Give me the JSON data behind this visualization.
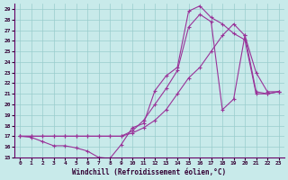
{
  "bg_color": "#c8eaea",
  "grid_color": "#99cccc",
  "line_color": "#993399",
  "xlabel": "Windchill (Refroidissement éolien,°C)",
  "xlim": [
    -0.5,
    23.5
  ],
  "ylim": [
    15,
    29.5
  ],
  "yticks": [
    15,
    16,
    17,
    18,
    19,
    20,
    21,
    22,
    23,
    24,
    25,
    26,
    27,
    28,
    29
  ],
  "xticks": [
    0,
    1,
    2,
    3,
    4,
    5,
    6,
    7,
    8,
    9,
    10,
    11,
    12,
    13,
    14,
    15,
    16,
    17,
    18,
    19,
    20,
    21,
    22,
    23
  ],
  "line1_x": [
    0,
    1,
    2,
    3,
    4,
    5,
    6,
    7,
    8,
    9,
    10,
    11,
    12,
    13,
    14,
    15,
    16,
    17,
    18,
    19,
    20,
    21,
    22,
    23
  ],
  "line1_y": [
    17.0,
    16.9,
    16.5,
    16.1,
    16.1,
    15.9,
    15.6,
    15.0,
    14.9,
    16.2,
    17.8,
    18.2,
    21.3,
    22.7,
    23.5,
    28.8,
    29.3,
    28.2,
    27.6,
    26.7,
    26.1,
    21.0,
    21.0,
    21.2
  ],
  "line2_x": [
    0,
    1,
    2,
    3,
    4,
    5,
    6,
    7,
    8,
    9,
    10,
    11,
    12,
    13,
    14,
    15,
    16,
    17,
    18,
    19,
    20,
    21,
    22,
    23
  ],
  "line2_y": [
    17.0,
    17.0,
    17.0,
    17.0,
    17.0,
    17.0,
    17.0,
    17.0,
    17.0,
    17.0,
    17.5,
    18.5,
    20.0,
    21.5,
    23.2,
    27.3,
    28.5,
    27.8,
    19.5,
    20.5,
    26.5,
    23.0,
    21.2,
    21.2
  ],
  "line3_x": [
    0,
    1,
    2,
    3,
    4,
    5,
    6,
    7,
    8,
    9,
    10,
    11,
    12,
    13,
    14,
    15,
    16,
    17,
    18,
    19,
    20,
    21,
    22,
    23
  ],
  "line3_y": [
    17.0,
    17.0,
    17.0,
    17.0,
    17.0,
    17.0,
    17.0,
    17.0,
    17.0,
    17.0,
    17.3,
    17.8,
    18.5,
    19.5,
    21.0,
    22.5,
    23.5,
    25.0,
    26.5,
    27.6,
    26.5,
    21.2,
    21.0,
    21.2
  ]
}
